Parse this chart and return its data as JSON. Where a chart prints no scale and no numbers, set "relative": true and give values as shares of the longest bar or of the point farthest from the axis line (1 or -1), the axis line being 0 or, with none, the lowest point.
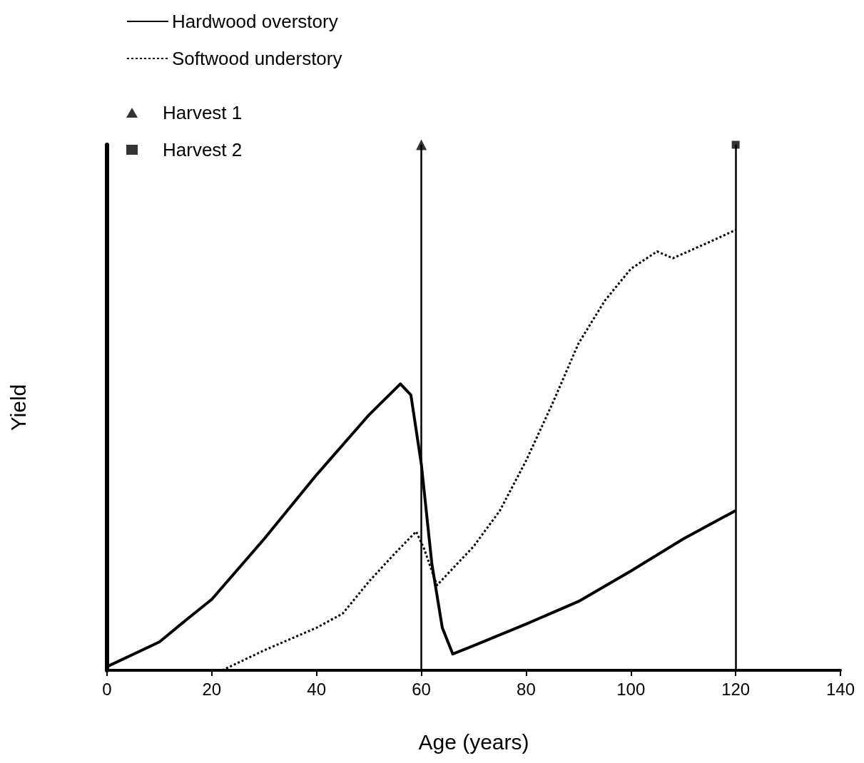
{
  "chart_data": {
    "type": "line",
    "relative": true,
    "xlabel": "Age (years)",
    "ylabel": "Yield",
    "xlim": [
      0,
      140
    ],
    "xticks": [
      0,
      20,
      40,
      60,
      80,
      100,
      120,
      140
    ],
    "legend": "top left",
    "ref_lines": [
      {
        "axis": "x",
        "value": 60,
        "color": "#000000"
      },
      {
        "axis": "x",
        "value": 120,
        "color": "#000000"
      }
    ],
    "series": [
      {
        "name": "Hardwood overstory",
        "color": "#000000",
        "line_style": "solid",
        "marker": "none",
        "x": [
          0,
          10,
          15,
          20,
          30,
          40,
          50,
          56,
          58,
          60,
          62,
          64,
          66,
          70,
          80,
          90,
          100,
          110,
          120
        ],
        "values": [
          0.007,
          0.054,
          0.095,
          0.135,
          0.25,
          0.372,
          0.486,
          0.545,
          0.524,
          0.392,
          0.203,
          0.081,
          0.031,
          0.047,
          0.088,
          0.131,
          0.189,
          0.25,
          0.304
        ]
      },
      {
        "name": "Softwood understory",
        "color": "#000000",
        "line_style": "dotted",
        "marker": "none",
        "x": [
          22,
          30,
          40,
          45,
          50,
          55,
          59,
          60.5,
          62,
          63,
          70,
          75,
          80,
          85,
          90,
          95,
          100,
          105,
          108,
          115,
          120
        ],
        "values": [
          0,
          0.038,
          0.081,
          0.108,
          0.169,
          0.223,
          0.264,
          0.232,
          0.189,
          0.162,
          0.236,
          0.304,
          0.399,
          0.507,
          0.622,
          0.703,
          0.764,
          0.797,
          0.784,
          0.815,
          0.838
        ]
      },
      {
        "name": "Harvest 1",
        "type": "scatter",
        "color": "#000000",
        "marker": "triangle",
        "x": [
          60
        ],
        "values": [
          1
        ]
      },
      {
        "name": "Harvest 2",
        "type": "scatter",
        "color": "#000000",
        "marker": "square",
        "x": [
          120
        ],
        "values": [
          1
        ]
      }
    ]
  }
}
